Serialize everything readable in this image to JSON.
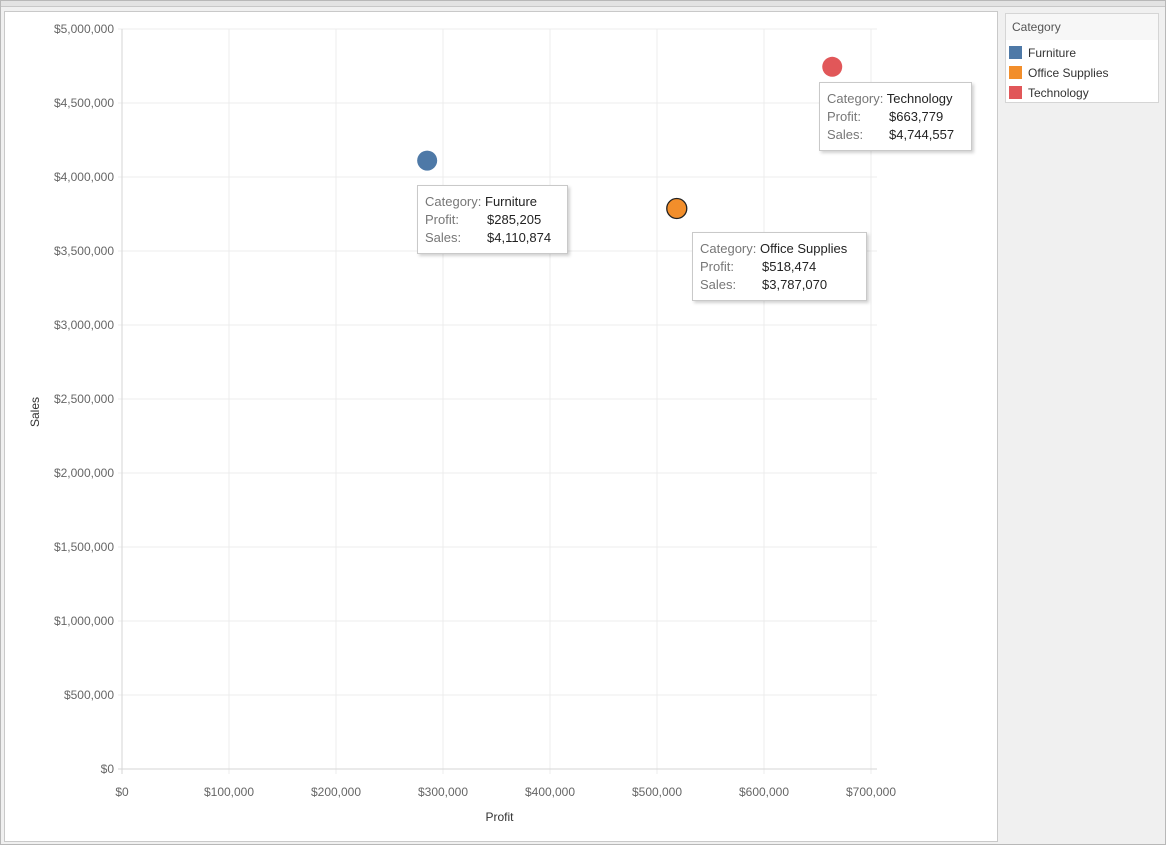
{
  "legend": {
    "title": "Category",
    "items": [
      {
        "label": "Furniture",
        "color": "#4e79a7"
      },
      {
        "label": "Office Supplies",
        "color": "#f28e2b"
      },
      {
        "label": "Technology",
        "color": "#e15759"
      }
    ]
  },
  "tooltips": [
    {
      "category_key": "Category:",
      "category": "Furniture",
      "profit_key": "Profit:",
      "profit": "$285,205",
      "sales_key": "Sales:",
      "sales": "$4,110,874"
    },
    {
      "category_key": "Category:",
      "category": "Office Supplies",
      "profit_key": "Profit:",
      "profit": "$518,474",
      "sales_key": "Sales:",
      "sales": "$3,787,070"
    },
    {
      "category_key": "Category:",
      "category": "Technology",
      "profit_key": "Profit:",
      "profit": "$663,779",
      "sales_key": "Sales:",
      "sales": "$4,744,557"
    }
  ],
  "chart_data": {
    "type": "scatter",
    "title": "",
    "xlabel": "Profit",
    "ylabel": "Sales",
    "xlim": [
      0,
      700000
    ],
    "ylim": [
      0,
      5000000
    ],
    "x_ticks": [
      "$0",
      "$100,000",
      "$200,000",
      "$300,000",
      "$400,000",
      "$500,000",
      "$600,000",
      "$700,000"
    ],
    "y_ticks": [
      "$0",
      "$500,000",
      "$1,000,000",
      "$1,500,000",
      "$2,000,000",
      "$2,500,000",
      "$3,000,000",
      "$3,500,000",
      "$4,000,000",
      "$4,500,000",
      "$5,000,000"
    ],
    "grid": true,
    "legend_position": "right",
    "series": [
      {
        "name": "Furniture",
        "color": "#4e79a7",
        "points": [
          {
            "x": 285205,
            "y": 4110874
          }
        ]
      },
      {
        "name": "Office Supplies",
        "color": "#f28e2b",
        "points": [
          {
            "x": 518474,
            "y": 3787070
          }
        ]
      },
      {
        "name": "Technology",
        "color": "#e15759",
        "points": [
          {
            "x": 663779,
            "y": 4744557
          }
        ]
      }
    ]
  }
}
